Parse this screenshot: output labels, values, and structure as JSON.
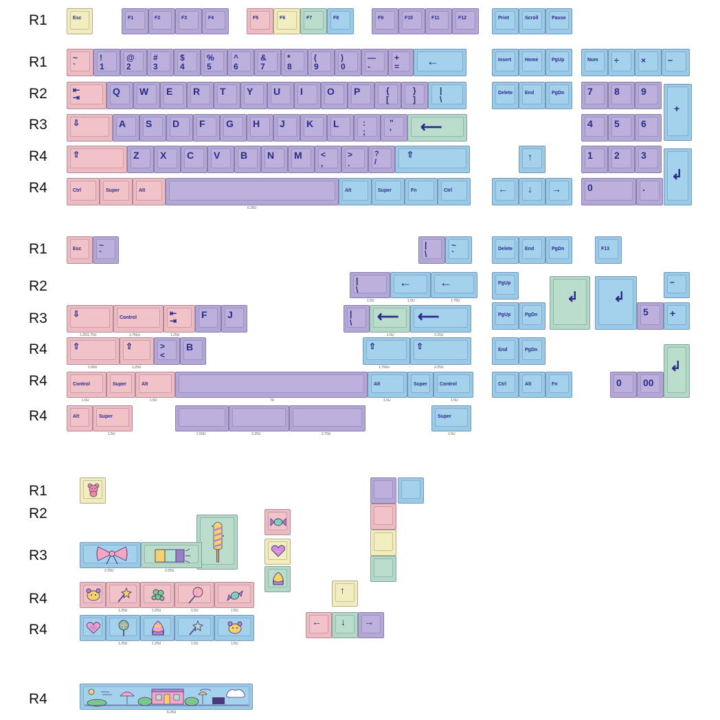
{
  "row_labels": [
    "R1",
    "R1",
    "R2",
    "R3",
    "R4",
    "R4",
    "R1",
    "R2",
    "R3",
    "R4",
    "R4",
    "R4",
    "R1",
    "R2",
    "R3",
    "R4",
    "R4",
    "R4"
  ],
  "sizes": {
    "space1": "6.25U",
    "r2_15a": "1.5U",
    "r2_15b": "1.5U",
    "r2_175": "1.75U",
    "r3_125_175": "1.25/1.75U",
    "r3_175": "1.75Us",
    "r3_125": "1.25U",
    "r3_15": "1.5U",
    "r3_225": "2.25U",
    "r4_200": "2.00U",
    "r4_125": "1.25U",
    "r4_175": "1.75Us",
    "r4_225": "2.25U",
    "r5_15a": "1.5U",
    "r5_15b": "1.5U",
    "r5_7": "7U",
    "r5_15c": "1.5U",
    "r5_15d": "1.5U",
    "r6_15": "1.5U",
    "r6_200": "2.00U",
    "r6_225": "2.25U",
    "r6_275": "2.75U",
    "r6_15b": "1.5U",
    "n_225a": "2.25U",
    "n_225b": "2.25U",
    "n1_125a": "1.25U",
    "n1_125b": "1.25U",
    "n1_15a": "1.5U",
    "n1_15b": "1.5U",
    "n2_125a": "1.25U",
    "n2_125b": "1.25U",
    "n2_15a": "1.5U",
    "n2_15b": "1.5U",
    "space_novel": "6.25U"
  },
  "keys": {
    "esc": "Esc",
    "f1": "F1",
    "f2": "F2",
    "f3": "F3",
    "f4": "F4",
    "f5": "F5",
    "f6": "F6",
    "f7": "F7",
    "f8": "F8",
    "f9": "F9",
    "f10": "F10",
    "f11": "F11",
    "f12": "F12",
    "print": "Print",
    "scroll": "Scroll",
    "pause": "Pause",
    "grave": "~\n`",
    "n1": "!\n1",
    "n2": "@\n2",
    "n3": "#\n3",
    "n4": "$\n4",
    "n5": "%\n5",
    "n6": "^\n6",
    "n7": "&\n7",
    "n8": "*\n8",
    "n9": "(\n9",
    "n0": ")\n0",
    "minus": "—\n-",
    "plus": "+\n=",
    "backspace": "←",
    "insert": "Insert",
    "home": "Home",
    "pgup": "PgUp",
    "num": "Num",
    "div": "÷",
    "mul": "×",
    "sub": "−",
    "tab": "⇤\n⇥",
    "q": "Q",
    "w": "W",
    "e": "E",
    "r": "R",
    "t": "T",
    "y": "Y",
    "u": "U",
    "i": "I",
    "o": "O",
    "p": "P",
    "lbr": "{\n[",
    "rbr": "}\n]",
    "bslash": "|\n\\",
    "delete": "Delete",
    "end": "End",
    "pgdn": "PgDn",
    "k7": "7",
    "k8": "8",
    "k9": "9",
    "kplus": "+",
    "caps": "⇩",
    "a": "A",
    "s": "S",
    "d": "D",
    "f": "F",
    "g": "G",
    "h": "H",
    "j": "J",
    "k": "K",
    "l": "L",
    "semi": ":\n;",
    "quote": "\"\n'",
    "enter": "⟵",
    "k4": "4",
    "k5": "5",
    "k6": "6",
    "lshift": "⇧",
    "z": "Z",
    "x": "X",
    "c": "C",
    "v": "V",
    "b": "B",
    "n": "N",
    "m": "M",
    "comma": "<\n,",
    "period": ">\n.",
    "slash": "?\n/",
    "rshift": "⇧",
    "up": "↑",
    "k1": "1",
    "k2": "2",
    "k3": "3",
    "kenter": "↲",
    "ctrl": "Ctrl",
    "super": "Super",
    "alt": "Alt",
    "ralt": "Alt",
    "rsuper": "Super",
    "fn": "Fn",
    "rctrl": "Ctrl",
    "left": "←",
    "down": "↓",
    "right": "→",
    "k0": "0",
    "kdot": "."
  },
  "extras": {
    "esc2": "Esc",
    "grave2": "~\n`",
    "bar1": "|\n\\",
    "grave3": "~\n`",
    "delete2": "Delete",
    "end2": "End",
    "pgdn2": "PgDn",
    "f13": "F13",
    "r2_bar": "|\n\\",
    "r2_back1": "←",
    "r2_back2": "←",
    "pgup_b": "PgUp",
    "isoenter": "↲",
    "bigenter": "↲",
    "kminus2": "−",
    "caps2": "⇩",
    "control1": "Control",
    "tab2": "⇤\n⇥",
    "f2k": "F",
    "j2k": "J",
    "r3_bar": "|\n\\",
    "r3_enter1": "⟵",
    "r3_enter2": "⟵",
    "pgup_c": "PgUp",
    "pgdn_c": "PgDn",
    "k5b": "5",
    "kplus2": "+",
    "shift2": "⇧",
    "shift3": "⇧",
    "isoangle": ">\n<",
    "b2": "B",
    "rshift2": "⇧",
    "rshift3": "⇧",
    "end3": "End",
    "pgdn3": "PgDn",
    "kenter2": "↲",
    "control2": "Control",
    "super2": "Super",
    "alt2": "Alt",
    "alt3": "Alt",
    "super3": "Super",
    "control3": "Control",
    "ctrl3": "Ctrl",
    "alt4": "Alt",
    "fn3": "Fn",
    "k0b": "0",
    "k00": "00",
    "alt5": "Alt",
    "super4": "Super",
    "super5": "Super",
    "up2": "↑",
    "left2": "←",
    "down2": "↓",
    "right2": "→"
  },
  "colors": {
    "yellow": "#f2ecb8",
    "purple": "#b3a7d8",
    "pink": "#efbac0",
    "green": "#b2d9c5",
    "blue": "#98cbe9",
    "legend": "#2a2a88"
  },
  "icons": [
    "bear-icon",
    "candy-icon",
    "ribbon-icon",
    "candy-bar-icon",
    "popsicle-icon",
    "heart-icon",
    "candy-corn-icon",
    "magic-wand-icon",
    "grapes-icon",
    "lollipop-icon",
    "town-scene-icon"
  ]
}
